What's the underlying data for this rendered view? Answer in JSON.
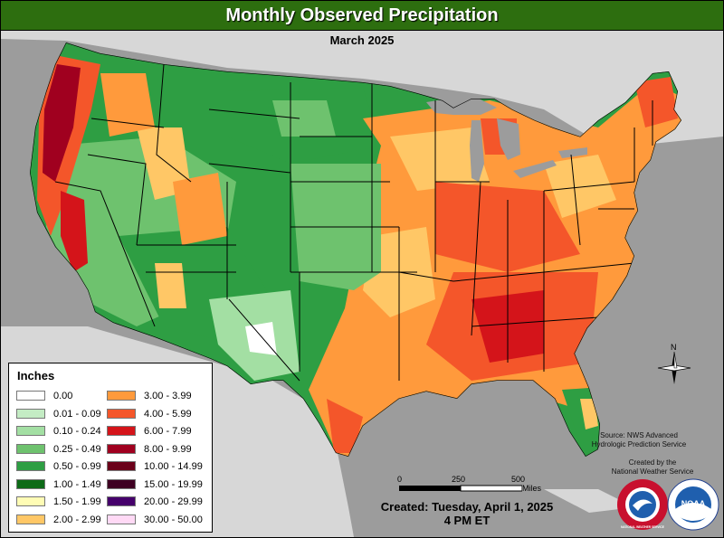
{
  "title": "Monthly Observed Precipitation",
  "subtitle": "March 2025",
  "legend": {
    "title": "Inches",
    "items": [
      {
        "label": "0.00",
        "color": "#ffffff"
      },
      {
        "label": "0.01 - 0.09",
        "color": "#c4ecc4"
      },
      {
        "label": "0.10 - 0.24",
        "color": "#a3dfa3"
      },
      {
        "label": "0.25 - 0.49",
        "color": "#6ec26e"
      },
      {
        "label": "0.50 - 0.99",
        "color": "#2e9e43"
      },
      {
        "label": "1.00 - 1.49",
        "color": "#0d6b17"
      },
      {
        "label": "1.50 - 1.99",
        "color": "#fffcb5"
      },
      {
        "label": "2.00 - 2.99",
        "color": "#ffc766"
      },
      {
        "label": "3.00 - 3.99",
        "color": "#ff9a3c"
      },
      {
        "label": "4.00 - 5.99",
        "color": "#f4562a"
      },
      {
        "label": "6.00 - 7.99",
        "color": "#d4141a"
      },
      {
        "label": "8.00 - 9.99",
        "color": "#a0001f"
      },
      {
        "label": "10.00 - 14.99",
        "color": "#6b0019"
      },
      {
        "label": "15.00 - 19.99",
        "color": "#3f0022"
      },
      {
        "label": "20.00 - 29.99",
        "color": "#45006b"
      },
      {
        "label": "30.00 - 50.00",
        "color": "#ffd9f5"
      }
    ]
  },
  "scale": {
    "ticks": [
      "0",
      "250",
      "500"
    ],
    "unit": "Miles"
  },
  "north_label": "N",
  "source": {
    "line1": "Source: NWS Advanced",
    "line2": "Hydrologic Prediction Service"
  },
  "created_by": {
    "line1": "Created by the",
    "line2": "National Weather Service"
  },
  "created": {
    "line1": "Created: Tuesday, April 1, 2025",
    "line2": "4 PM ET"
  },
  "logos": [
    {
      "icon": "nws-logo-icon",
      "text": "NATIONAL WEATHER SERVICE"
    },
    {
      "icon": "noaa-logo-icon",
      "text": "NOAA"
    }
  ],
  "colors": {
    "title_bar": "#2d6e0f",
    "background": "#9c9c9c",
    "land_outside": "#d7d7d7",
    "water": "#9c9c9c"
  }
}
